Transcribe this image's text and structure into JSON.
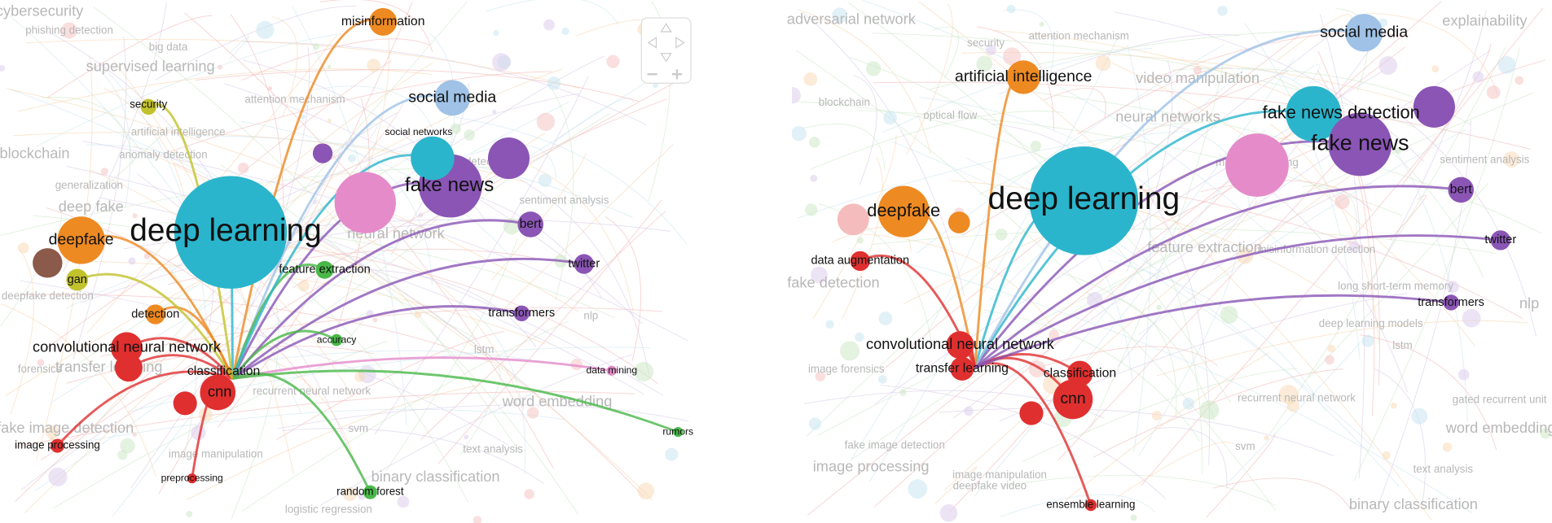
{
  "panels": [
    {
      "nodes": [
        {
          "label": "deep learning"
        },
        {
          "label": "fake news"
        },
        {
          "label": "social media"
        },
        {
          "label": "misinformation"
        },
        {
          "label": "deepfake"
        },
        {
          "label": "convolutional neural network"
        },
        {
          "label": "cnn"
        },
        {
          "label": "classification"
        },
        {
          "label": "feature extraction"
        },
        {
          "label": "security"
        },
        {
          "label": "social networks"
        },
        {
          "label": "bert"
        },
        {
          "label": "twitter"
        },
        {
          "label": "transformers"
        },
        {
          "label": "accuracy"
        },
        {
          "label": "data mining"
        },
        {
          "label": "rumors"
        },
        {
          "label": "random forest"
        },
        {
          "label": "image processing"
        },
        {
          "label": "preprocessing"
        },
        {
          "label": "detection"
        },
        {
          "label": "gan"
        }
      ],
      "faded": [
        "cybersecurity",
        "phishing detection",
        "big data",
        "supervised learning",
        "attention mechanism",
        "artificial intelligence",
        "blockchain",
        "anomaly detection",
        "generalization",
        "deep fake",
        "fake news detection",
        "sentiment analysis",
        "neural network",
        "lstm",
        "nlp",
        "transfer learning",
        "forensics",
        "recurrent neural network",
        "word embedding",
        "svm",
        "logistic regression",
        "fake image detection",
        "image manipulation",
        "text analysis",
        "binary classification",
        "deepfake detection"
      ]
    },
    {
      "nodes": [
        {
          "label": "deep learning"
        },
        {
          "label": "fake news detection"
        },
        {
          "label": "fake news"
        },
        {
          "label": "social media"
        },
        {
          "label": "artificial intelligence"
        },
        {
          "label": "deepfake"
        },
        {
          "label": "data augmentation"
        },
        {
          "label": "convolutional neural network"
        },
        {
          "label": "transfer learning"
        },
        {
          "label": "classification"
        },
        {
          "label": "cnn"
        },
        {
          "label": "ensemble learning"
        },
        {
          "label": "bert"
        },
        {
          "label": "twitter"
        },
        {
          "label": "transformers"
        }
      ],
      "faded": [
        "adversarial network",
        "security",
        "attention mechanism",
        "video manipulation",
        "blockchain",
        "optical flow",
        "neural networks",
        "machine learning",
        "sentiment analysis",
        "feature extraction",
        "misinformation detection",
        "long short-term memory",
        "fake detection",
        "deep learning models",
        "lstm",
        "nlp",
        "recurrent neural network",
        "gated recurrent unit",
        "word embeddings",
        "image forensics",
        "fake image detection",
        "image processing",
        "svm",
        "text analysis",
        "binary classification",
        "image manipulation",
        "deepfake video",
        "explainability"
      ]
    }
  ]
}
